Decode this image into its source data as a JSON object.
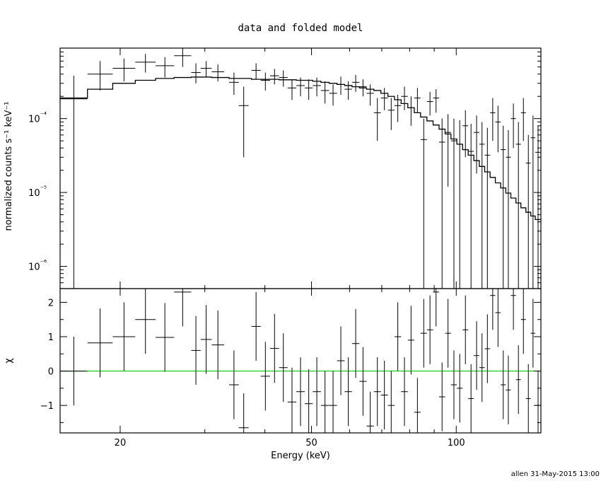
{
  "chart_data": [
    {
      "type": "scatter",
      "title": "data and folded model",
      "xlabel": "Energy (keV)",
      "ylabel": "normalized counts s⁻¹ keV⁻¹",
      "xscale": "log",
      "yscale": "log",
      "xlim": [
        15,
        150
      ],
      "ylim": [
        5e-07,
        0.0009
      ],
      "xticks": [
        20,
        50,
        100
      ],
      "xtick_labels": [
        "20",
        "50",
        "100"
      ],
      "yticks": [
        1e-06,
        1e-05,
        0.0001
      ],
      "ytick_labels": [
        "10⁻⁶",
        "10⁻⁵",
        "10⁻⁴"
      ],
      "grid": false,
      "legend": "none",
      "colors": {
        "data": "#000000",
        "model": "#000000"
      },
      "series": [
        {
          "kind": "data",
          "points": [
            {
              "xl": 15.0,
              "xh": 17.1,
              "y": 0.000185,
              "ylo": 5e-07,
              "yhi": 0.00038
            },
            {
              "xl": 17.1,
              "xh": 19.3,
              "y": 0.0004,
              "ylo": 0.00024,
              "yhi": 0.0006
            },
            {
              "xl": 19.3,
              "xh": 21.5,
              "y": 0.00048,
              "ylo": 0.00032,
              "yhi": 0.00065
            },
            {
              "xl": 21.5,
              "xh": 23.7,
              "y": 0.00058,
              "ylo": 0.00042,
              "yhi": 0.00075
            },
            {
              "xl": 23.7,
              "xh": 25.9,
              "y": 0.00052,
              "ylo": 0.00036,
              "yhi": 0.00068
            },
            {
              "xl": 25.9,
              "xh": 28.1,
              "y": 0.00071,
              "ylo": 0.0005,
              "yhi": 0.00095
            },
            {
              "xl": 28.1,
              "xh": 29.4,
              "y": 0.00042,
              "ylo": 0.0003,
              "yhi": 0.00056
            },
            {
              "xl": 29.4,
              "xh": 31.0,
              "y": 0.00048,
              "ylo": 0.00036,
              "yhi": 0.0006
            },
            {
              "xl": 31.0,
              "xh": 32.9,
              "y": 0.00043,
              "ylo": 0.00032,
              "yhi": 0.00054
            },
            {
              "xl": 33.7,
              "xh": 35.3,
              "y": 0.00031,
              "ylo": 0.00021,
              "yhi": 0.00042
            },
            {
              "xl": 35.3,
              "xh": 37.0,
              "y": 0.00015,
              "ylo": 3e-05,
              "yhi": 0.00027
            },
            {
              "xl": 37.5,
              "xh": 39.2,
              "y": 0.00045,
              "ylo": 0.00034,
              "yhi": 0.00056
            },
            {
              "xl": 39.2,
              "xh": 41.0,
              "y": 0.00033,
              "ylo": 0.00024,
              "yhi": 0.00042
            },
            {
              "xl": 41.0,
              "xh": 42.8,
              "y": 0.00038,
              "ylo": 0.00029,
              "yhi": 0.00047
            },
            {
              "xl": 42.8,
              "xh": 44.6,
              "y": 0.00036,
              "ylo": 0.00027,
              "yhi": 0.00045
            },
            {
              "xl": 44.6,
              "xh": 46.5,
              "y": 0.00026,
              "ylo": 0.00018,
              "yhi": 0.00034
            },
            {
              "xl": 46.5,
              "xh": 48.4,
              "y": 0.00028,
              "ylo": 0.0002,
              "yhi": 0.00036
            },
            {
              "xl": 48.4,
              "xh": 50.3,
              "y": 0.00026,
              "ylo": 0.00018,
              "yhi": 0.00034
            },
            {
              "xl": 50.3,
              "xh": 52.3,
              "y": 0.00028,
              "ylo": 0.0002,
              "yhi": 0.00036
            },
            {
              "xl": 52.3,
              "xh": 54.4,
              "y": 0.00024,
              "ylo": 0.00016,
              "yhi": 0.00032
            },
            {
              "xl": 54.4,
              "xh": 56.5,
              "y": 0.00022,
              "ylo": 0.00015,
              "yhi": 0.00029
            },
            {
              "xl": 56.5,
              "xh": 58.6,
              "y": 0.00029,
              "ylo": 0.00021,
              "yhi": 0.00037
            },
            {
              "xl": 58.6,
              "xh": 60.7,
              "y": 0.00025,
              "ylo": 0.00018,
              "yhi": 0.00032
            },
            {
              "xl": 60.7,
              "xh": 62.9,
              "y": 0.00031,
              "ylo": 0.00023,
              "yhi": 0.00039
            },
            {
              "xl": 62.9,
              "xh": 65.1,
              "y": 0.00027,
              "ylo": 0.0002,
              "yhi": 0.00034
            },
            {
              "xl": 65.1,
              "xh": 67.4,
              "y": 0.00022,
              "ylo": 0.00015,
              "yhi": 0.00029
            },
            {
              "xl": 67.4,
              "xh": 69.7,
              "y": 0.00012,
              "ylo": 5e-05,
              "yhi": 0.00019
            },
            {
              "xl": 69.7,
              "xh": 72.1,
              "y": 0.00019,
              "ylo": 0.00013,
              "yhi": 0.00026
            },
            {
              "xl": 72.1,
              "xh": 74.4,
              "y": 0.00013,
              "ylo": 7e-05,
              "yhi": 0.00019
            },
            {
              "xl": 74.4,
              "xh": 76.8,
              "y": 0.00015,
              "ylo": 9e-05,
              "yhi": 0.00021
            },
            {
              "xl": 76.8,
              "xh": 79.3,
              "y": 0.0002,
              "ylo": 0.00013,
              "yhi": 0.00027
            },
            {
              "xl": 79.3,
              "xh": 81.8,
              "y": 0.00014,
              "ylo": 8e-05,
              "yhi": 0.0002
            },
            {
              "xl": 81.8,
              "xh": 84.3,
              "y": 0.00019,
              "ylo": 0.00012,
              "yhi": 0.00026
            },
            {
              "xl": 84.3,
              "xh": 86.9,
              "y": 5.2e-05,
              "ylo": 5e-07,
              "yhi": 0.0001
            },
            {
              "xl": 86.9,
              "xh": 89.5,
              "y": 0.00017,
              "ylo": 0.00011,
              "yhi": 0.00023
            },
            {
              "xl": 89.5,
              "xh": 92.1,
              "y": 0.00019,
              "ylo": 0.00012,
              "yhi": 0.00025
            },
            {
              "xl": 92.1,
              "xh": 94.8,
              "y": 4.8e-05,
              "ylo": 5e-07,
              "yhi": 0.0001
            },
            {
              "xl": 94.8,
              "xh": 97.5,
              "y": 6.5e-05,
              "ylo": 1.2e-05,
              "yhi": 0.000115
            },
            {
              "xl": 97.5,
              "xh": 100.3,
              "y": 5e-05,
              "ylo": 5e-07,
              "yhi": 0.0001
            },
            {
              "xl": 100.3,
              "xh": 103.1,
              "y": 4.5e-05,
              "ylo": 5e-07,
              "yhi": 9.5e-05
            },
            {
              "xl": 103.1,
              "xh": 105.9,
              "y": 8e-05,
              "ylo": 3e-05,
              "yhi": 0.00013
            },
            {
              "xl": 105.9,
              "xh": 108.8,
              "y": 3.6e-05,
              "ylo": 5e-07,
              "yhi": 8.5e-05
            },
            {
              "xl": 108.8,
              "xh": 111.7,
              "y": 6.5e-05,
              "ylo": 1.8e-05,
              "yhi": 0.00011
            },
            {
              "xl": 111.7,
              "xh": 114.6,
              "y": 4.5e-05,
              "ylo": 5e-07,
              "yhi": 9e-05
            },
            {
              "xl": 114.6,
              "xh": 117.6,
              "y": 3.2e-05,
              "ylo": 5e-07,
              "yhi": 7.5e-05
            },
            {
              "xl": 117.6,
              "xh": 120.6,
              "y": 0.00012,
              "ylo": 5e-05,
              "yhi": 0.00019
            },
            {
              "xl": 120.6,
              "xh": 123.7,
              "y": 9e-05,
              "ylo": 3.5e-05,
              "yhi": 0.00015
            },
            {
              "xl": 123.7,
              "xh": 126.8,
              "y": 3.8e-05,
              "ylo": 5e-07,
              "yhi": 8e-05
            },
            {
              "xl": 126.8,
              "xh": 129.9,
              "y": 3e-05,
              "ylo": 5e-07,
              "yhi": 7e-05
            },
            {
              "xl": 129.9,
              "xh": 133.1,
              "y": 0.0001,
              "ylo": 4e-05,
              "yhi": 0.00016
            },
            {
              "xl": 133.1,
              "xh": 136.3,
              "y": 4.5e-05,
              "ylo": 5e-07,
              "yhi": 9e-05
            },
            {
              "xl": 136.3,
              "xh": 139.6,
              "y": 0.00012,
              "ylo": 5e-05,
              "yhi": 0.00019
            },
            {
              "xl": 139.6,
              "xh": 142.9,
              "y": 2.5e-05,
              "ylo": 5e-07,
              "yhi": 6e-05
            },
            {
              "xl": 142.9,
              "xh": 146.0,
              "y": 5.5e-05,
              "ylo": 5e-07,
              "yhi": 0.00011
            },
            {
              "xl": 146.0,
              "xh": 150.0,
              "y": 3.5e-05,
              "ylo": 5e-07,
              "yhi": 8e-05
            }
          ]
        },
        {
          "kind": "model",
          "edges": [
            15.0,
            17.1,
            19.3,
            21.5,
            23.7,
            25.9,
            28.1,
            29.4,
            31.0,
            32.9,
            33.7,
            35.3,
            37.0,
            37.5,
            39.2,
            41.0,
            42.8,
            44.6,
            46.5,
            48.4,
            50.3,
            52.3,
            54.4,
            56.5,
            58.6,
            60.7,
            62.9,
            65.1,
            67.4,
            69.7,
            72.1,
            74.4,
            76.8,
            79.3,
            81.8,
            84.3,
            86.9,
            89.5,
            92.1,
            94.8,
            97.5,
            100.3,
            103.1,
            105.9,
            108.8,
            111.7,
            114.6,
            117.6,
            120.6,
            123.7,
            126.8,
            129.9,
            133.1,
            136.3,
            139.6,
            142.9,
            146.0,
            150.0
          ],
          "values": [
            0.00019,
            0.00025,
            0.0003,
            0.00033,
            0.00035,
            0.00036,
            0.000365,
            0.000365,
            0.00036,
            0.00036,
            0.00035,
            0.00035,
            0.00035,
            0.00034,
            0.00034,
            0.00034,
            0.000335,
            0.000335,
            0.00033,
            0.00033,
            0.00032,
            0.00031,
            0.0003,
            0.00029,
            0.00028,
            0.00027,
            0.00026,
            0.00025,
            0.00024,
            0.00022,
            0.0002,
            0.00018,
            0.00016,
            0.00014,
            0.00012,
            0.000105,
            9.3e-05,
            8.2e-05,
            7.2e-05,
            6.2e-05,
            5.3e-05,
            4.5e-05,
            3.8e-05,
            3.2e-05,
            2.7e-05,
            2.25e-05,
            1.9e-05,
            1.6e-05,
            1.35e-05,
            1.15e-05,
            9.8e-06,
            8.4e-06,
            7.2e-06,
            6.2e-06,
            5.4e-06,
            4.8e-06,
            4.3e-06
          ]
        }
      ]
    },
    {
      "type": "scatter",
      "xlabel": "Energy (keV)",
      "ylabel": "χ",
      "xscale": "log",
      "yscale": "linear",
      "xlim": [
        15,
        150
      ],
      "ylim": [
        -1.8,
        2.4
      ],
      "xticks": [
        20,
        50,
        100
      ],
      "xtick_labels": [
        "20",
        "50",
        "100"
      ],
      "yticks": [
        -1,
        0,
        1,
        2
      ],
      "ytick_labels": [
        "−1",
        "0",
        "1",
        "2"
      ],
      "grid": false,
      "legend": "none",
      "colors": {
        "data": "#000000",
        "zero_line": "#00cc00"
      },
      "series": [
        {
          "kind": "residuals",
          "points": [
            {
              "xl": 15.0,
              "xh": 17.1,
              "y": 0.0
            },
            {
              "xl": 17.1,
              "xh": 19.3,
              "y": 0.82
            },
            {
              "xl": 19.3,
              "xh": 21.5,
              "y": 1.0
            },
            {
              "xl": 21.5,
              "xh": 23.7,
              "y": 1.5
            },
            {
              "xl": 23.7,
              "xh": 25.9,
              "y": 0.98
            },
            {
              "xl": 25.9,
              "xh": 28.1,
              "y": 2.3
            },
            {
              "xl": 28.1,
              "xh": 29.4,
              "y": 0.6
            },
            {
              "xl": 29.4,
              "xh": 31.0,
              "y": 0.92
            },
            {
              "xl": 31.0,
              "xh": 32.9,
              "y": 0.76
            },
            {
              "xl": 33.7,
              "xh": 35.3,
              "y": -0.4
            },
            {
              "xl": 35.3,
              "xh": 37.0,
              "y": -1.65
            },
            {
              "xl": 37.5,
              "xh": 39.2,
              "y": 1.3
            },
            {
              "xl": 39.2,
              "xh": 41.0,
              "y": -0.15
            },
            {
              "xl": 41.0,
              "xh": 42.8,
              "y": 0.66
            },
            {
              "xl": 42.8,
              "xh": 44.6,
              "y": 0.1
            },
            {
              "xl": 44.6,
              "xh": 46.5,
              "y": -0.9
            },
            {
              "xl": 46.5,
              "xh": 48.4,
              "y": -0.6
            },
            {
              "xl": 48.4,
              "xh": 50.3,
              "y": -0.95
            },
            {
              "xl": 50.3,
              "xh": 52.3,
              "y": -0.6
            },
            {
              "xl": 52.3,
              "xh": 54.4,
              "y": -1.0
            },
            {
              "xl": 54.4,
              "xh": 56.5,
              "y": -1.0
            },
            {
              "xl": 56.5,
              "xh": 58.6,
              "y": 0.3
            },
            {
              "xl": 58.6,
              "xh": 60.7,
              "y": -0.6
            },
            {
              "xl": 60.7,
              "xh": 62.9,
              "y": 0.8
            },
            {
              "xl": 62.9,
              "xh": 65.1,
              "y": -0.3
            },
            {
              "xl": 65.1,
              "xh": 67.4,
              "y": -1.6
            },
            {
              "xl": 67.4,
              "xh": 69.7,
              "y": -0.6
            },
            {
              "xl": 69.7,
              "xh": 72.1,
              "y": -0.7
            },
            {
              "xl": 72.1,
              "xh": 74.4,
              "y": -1.0
            },
            {
              "xl": 74.4,
              "xh": 76.8,
              "y": 1.0
            },
            {
              "xl": 76.8,
              "xh": 79.3,
              "y": -0.6
            },
            {
              "xl": 79.3,
              "xh": 81.8,
              "y": 0.9
            },
            {
              "xl": 81.8,
              "xh": 84.3,
              "y": -1.2
            },
            {
              "xl": 84.3,
              "xh": 86.9,
              "y": 1.1
            },
            {
              "xl": 86.9,
              "xh": 89.5,
              "y": 1.2
            },
            {
              "xl": 89.5,
              "xh": 92.1,
              "y": 2.3
            },
            {
              "xl": 92.1,
              "xh": 94.8,
              "y": -0.75
            },
            {
              "xl": 94.8,
              "xh": 97.5,
              "y": 1.1
            },
            {
              "xl": 97.5,
              "xh": 100.3,
              "y": -0.4
            },
            {
              "xl": 100.3,
              "xh": 103.1,
              "y": -0.5
            },
            {
              "xl": 103.1,
              "xh": 105.9,
              "y": 1.2
            },
            {
              "xl": 105.9,
              "xh": 108.8,
              "y": -0.8
            },
            {
              "xl": 108.8,
              "xh": 111.7,
              "y": 0.45
            },
            {
              "xl": 111.7,
              "xh": 114.6,
              "y": 0.1
            },
            {
              "xl": 114.6,
              "xh": 117.6,
              "y": 0.65
            },
            {
              "xl": 117.6,
              "xh": 120.6,
              "y": 2.2
            },
            {
              "xl": 120.6,
              "xh": 123.7,
              "y": 1.7
            },
            {
              "xl": 123.7,
              "xh": 126.8,
              "y": -0.4
            },
            {
              "xl": 126.8,
              "xh": 129.9,
              "y": -0.55
            },
            {
              "xl": 129.9,
              "xh": 133.1,
              "y": 2.2
            },
            {
              "xl": 133.1,
              "xh": 136.3,
              "y": -0.25
            },
            {
              "xl": 136.3,
              "xh": 139.6,
              "y": 1.5
            },
            {
              "xl": 139.6,
              "xh": 142.9,
              "y": -0.8
            },
            {
              "xl": 142.9,
              "xh": 146.0,
              "y": 1.1
            },
            {
              "xl": 146.0,
              "xh": 150.0,
              "y": -1.0
            }
          ]
        }
      ]
    }
  ],
  "footer": "allen 31-May-2015 13:00"
}
